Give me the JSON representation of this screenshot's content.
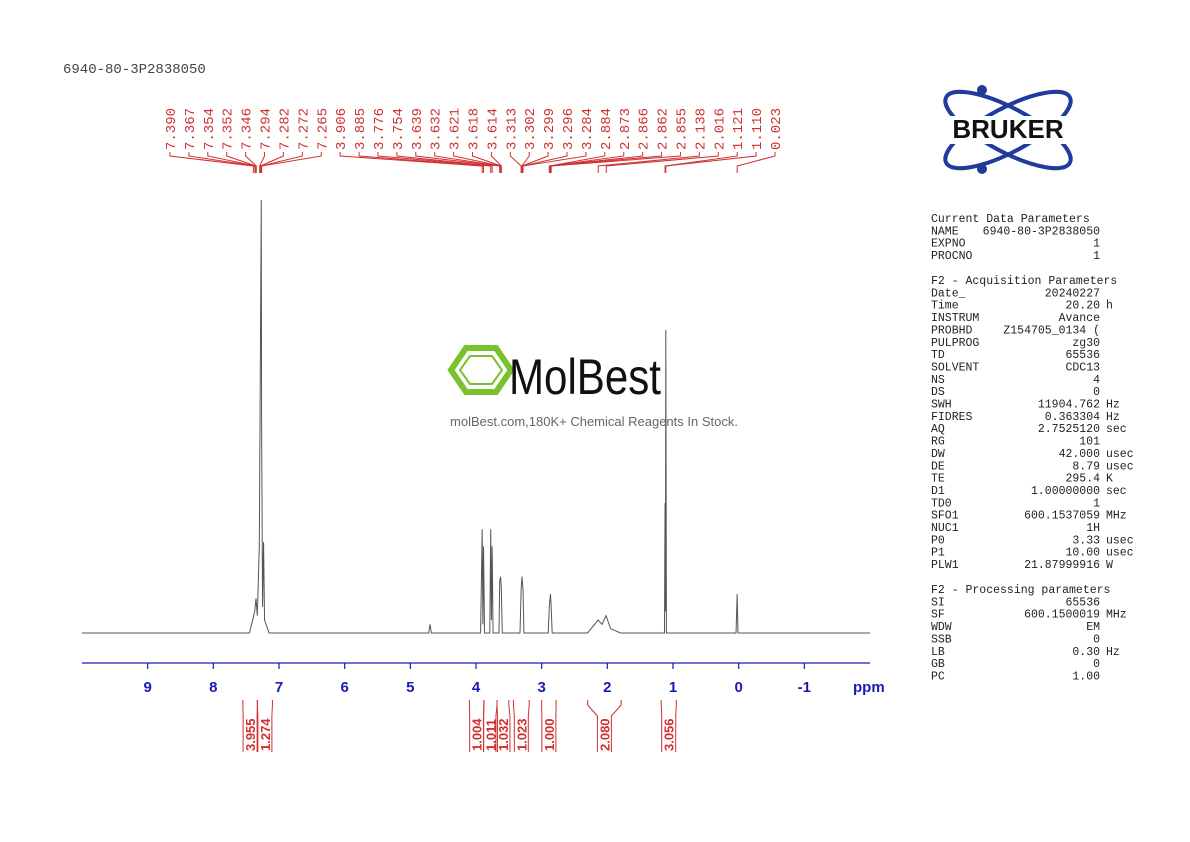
{
  "chart_data": {
    "type": "nmr",
    "title": "6940-80-3P2838050",
    "x_label": "ppm",
    "xlim": [
      10,
      -2
    ],
    "xticks": [
      9,
      8,
      7,
      6,
      5,
      4,
      3,
      2,
      1,
      0,
      -1
    ],
    "ylim": [
      0,
      100
    ],
    "color": "#555555",
    "axis_color": "#1a1ab8",
    "label_color": "#d03030",
    "x": [
      10,
      7.45,
      7.4,
      7.37,
      7.35,
      7.33,
      7.3,
      7.27,
      7.265,
      7.25,
      7.235,
      7.22,
      7.15,
      4.72,
      4.7,
      4.68,
      3.93,
      3.906,
      3.895,
      3.885,
      3.87,
      3.79,
      3.776,
      3.765,
      3.754,
      3.74,
      3.65,
      3.639,
      3.625,
      3.614,
      3.6,
      3.33,
      3.313,
      3.3,
      3.284,
      3.27,
      2.9,
      2.884,
      2.866,
      2.855,
      2.84,
      2.3,
      2.14,
      2.08,
      2.02,
      1.95,
      1.8,
      1.13,
      1.121,
      1.115,
      1.11,
      1.1,
      0.04,
      0.023,
      0.01,
      -2
    ],
    "values": [
      0,
      0,
      3,
      5,
      8,
      4,
      20,
      100,
      49,
      6,
      21,
      3,
      0,
      0,
      2,
      0,
      0,
      24,
      2,
      20,
      0,
      0,
      24,
      3,
      20,
      0,
      0,
      12,
      13,
      10,
      0,
      0,
      10,
      13,
      10,
      0,
      0,
      6,
      9,
      6,
      0,
      0,
      3,
      2,
      4,
      1,
      0,
      0,
      30,
      5,
      70,
      0,
      0,
      9,
      0,
      0
    ],
    "peak_labels": [
      {
        "value": 7.39,
        "label": "7.390"
      },
      7.367,
      7.354,
      7.352,
      7.346,
      7.294,
      7.282,
      7.272,
      7.265,
      3.906,
      3.885,
      3.776,
      3.754,
      3.639,
      3.632,
      3.621,
      3.618,
      3.614,
      3.313,
      3.302,
      3.299,
      3.296,
      3.284,
      2.884,
      2.873,
      2.866,
      2.862,
      2.855,
      2.138,
      2.016,
      1.121,
      {
        "value": 1.11,
        "label": "1.110"
      },
      0.023
    ],
    "integrals": {
      "ranges": [
        [
          7.55,
          7.33
        ],
        [
          7.33,
          7.1
        ],
        [
          4.1,
          3.88
        ],
        [
          3.88,
          3.68
        ],
        [
          3.68,
          3.5
        ],
        [
          3.43,
          3.19
        ],
        [
          3.0,
          2.78
        ],
        [
          2.3,
          1.79
        ],
        [
          1.18,
          0.95
        ]
      ],
      "values": [
        3.955,
        1.274,
        1.004,
        1.011,
        1.032,
        1.023,
        1,
        2.08,
        3.056
      ],
      "value_labels": [
        "3.955",
        "1.274",
        "1.004",
        "1.011",
        "1.032",
        "1.023",
        "1.000",
        "2.080",
        "3.056"
      ]
    }
  },
  "logo": {
    "brand": "BRUKER",
    "watermark": "MolBest",
    "watermark_caption": "molBest.com,180K+ Chemical Reagents In Stock."
  },
  "parameters": [
    {
      "title": "Current Data Parameters",
      "rows": [
        [
          "NAME",
          "6940-80-3P2838050"
        ],
        [
          "EXPNO",
          "1"
        ],
        [
          "PROCNO",
          "1"
        ]
      ]
    },
    {
      "title": "F2 - Acquisition Parameters",
      "rows": [
        [
          "Date_",
          "20240227"
        ],
        [
          "Time",
          "20.20",
          "h"
        ],
        [
          "INSTRUM",
          "Avance"
        ],
        [
          "PROBHD",
          "Z154705_0134 ("
        ],
        [
          "PULPROG",
          "zg30"
        ],
        [
          "TD",
          "65536"
        ],
        [
          "SOLVENT",
          "CDC13"
        ],
        [
          "NS",
          "4"
        ],
        [
          "DS",
          "0"
        ],
        [
          "SWH",
          "11904.762",
          "Hz"
        ],
        [
          "FIDRES",
          "0.363304",
          "Hz"
        ],
        [
          "AQ",
          "2.7525120",
          "sec"
        ],
        [
          "RG",
          "101"
        ],
        [
          "DW",
          "42.000",
          "usec"
        ],
        [
          "DE",
          "8.79",
          "usec"
        ],
        [
          "TE",
          "295.4",
          "K"
        ],
        [
          "D1",
          "1.00000000",
          "sec"
        ],
        [
          "TD0",
          "1"
        ],
        [
          "SFO1",
          "600.1537059",
          "MHz"
        ],
        [
          "NUC1",
          "1H"
        ],
        [
          "P0",
          "3.33",
          "usec"
        ],
        [
          "P1",
          "10.00",
          "usec"
        ],
        [
          "PLW1",
          "21.87999916",
          "W"
        ]
      ]
    },
    {
      "title": "F2 - Processing parameters",
      "rows": [
        [
          "SI",
          "65536"
        ],
        [
          "SF",
          "600.1500019",
          "MHz"
        ],
        [
          "WDW",
          "EM"
        ],
        [
          "SSB",
          "0"
        ],
        [
          "LB",
          "0.30",
          "Hz"
        ],
        [
          "GB",
          "0"
        ],
        [
          "PC",
          "1.00"
        ]
      ]
    }
  ]
}
